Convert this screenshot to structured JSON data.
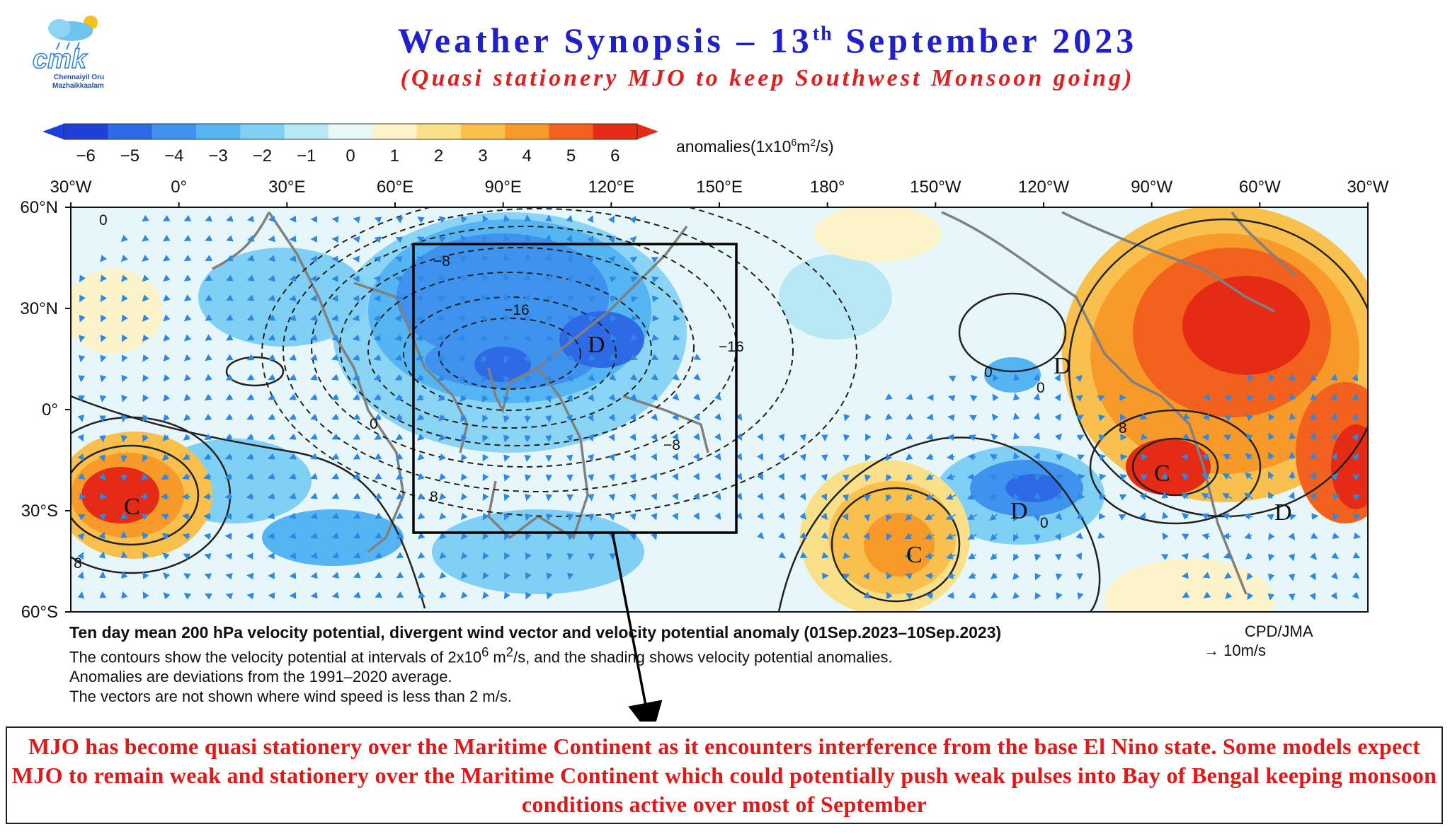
{
  "header": {
    "title_main": "Weather Synopsis – 13",
    "title_sup": "th",
    "title_rest": " September 2023",
    "subtitle": "(Quasi stationery MJO to keep Southwest Monsoon going)"
  },
  "logo": {
    "letters": "cmk",
    "line1": "Chennaiyil Oru",
    "line2": "Mazhaikkaalam",
    "icon": "sun-cloud-rain-icon"
  },
  "colorbar": {
    "ticks": [
      "−6",
      "−5",
      "−4",
      "−3",
      "−2",
      "−1",
      "0",
      "1",
      "2",
      "3",
      "4",
      "5",
      "6"
    ],
    "unit_label": "anomalies(1x10",
    "unit_sup": "6",
    "unit_rest": "m",
    "unit_sup2": "2",
    "unit_end": "/s)",
    "colors": [
      "#1f3fd8",
      "#2f6ae6",
      "#3f92ee",
      "#55b4f2",
      "#7fd0f4",
      "#b8e8f6",
      "#e9f7f9",
      "#fdf3c8",
      "#fbe08a",
      "#f9c04e",
      "#f79a2a",
      "#f2621c",
      "#e52a16"
    ]
  },
  "axes": {
    "lon_labels": [
      "30°W",
      "0°",
      "30°E",
      "60°E",
      "90°E",
      "120°E",
      "150°E",
      "180°",
      "150°W",
      "120°W",
      "90°W",
      "60°W",
      "30°W"
    ],
    "lat_labels": [
      "60°N",
      "30°N",
      "0°",
      "30°S",
      "60°S"
    ]
  },
  "map_labels": {
    "contours": [
      "0",
      "−8",
      "−16",
      "−16",
      "0",
      "−8",
      "8",
      "0",
      "0",
      "8",
      "8",
      "0"
    ],
    "centers": [
      "D",
      "D",
      "C",
      "C",
      "D",
      "C",
      "D"
    ]
  },
  "caption": {
    "title": "Ten day mean 200 hPa velocity potential, divergent wind vector and velocity potential anomaly (01Sep.2023–10Sep.2023)",
    "line1_a": "The contours show the velocity potential at intervals of 2x10",
    "line1_sup": "6",
    "line1_b": " m",
    "line1_sup2": "2",
    "line1_c": "/s, and the shading shows velocity potential anomalies.",
    "line2": "Anomalies are deviations from the 1991–2020 average.",
    "line3": "The vectors are not shown where wind speed is less than 2 m/s.",
    "credit": "CPD/JMA",
    "scale": "→ 10m/s"
  },
  "note": {
    "text": "MJO has become quasi stationery over the Maritime Continent as it encounters interference from the base El Nino state. Some models expect MJO to remain weak and stationery over the Maritime Continent which could potentially push weak pulses into Bay of Bengal keeping monsoon conditions active over most of September"
  }
}
